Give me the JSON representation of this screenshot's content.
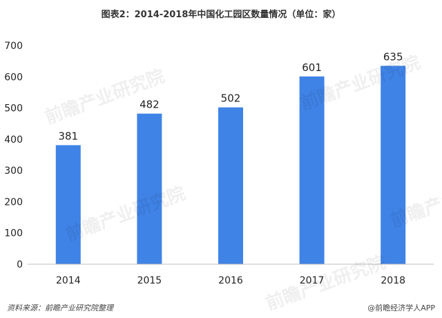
{
  "title": "图表2：2014-2018年中国化工园区数量情况（单位：家）",
  "source": "资料来源：前瞻产业研究院整理",
  "brand": "@前瞻经济学人APP",
  "watermark": "前瞻产业研究院",
  "colors": {
    "bar": "#3f83e6",
    "axis": "#bfbfbf",
    "grid": "#d9d9d9"
  },
  "chart_data": {
    "type": "bar",
    "title": "图表2：2014-2018年中国化工园区数量情况（单位：家）",
    "categories": [
      "2014",
      "2015",
      "2016",
      "2017",
      "2018"
    ],
    "values": [
      381,
      482,
      502,
      601,
      635
    ],
    "yticks": [
      0,
      100,
      200,
      300,
      400,
      500,
      600,
      700
    ],
    "ylim": [
      0,
      700
    ],
    "xlabel": "",
    "ylabel": "",
    "grid": false,
    "legend": "none"
  }
}
